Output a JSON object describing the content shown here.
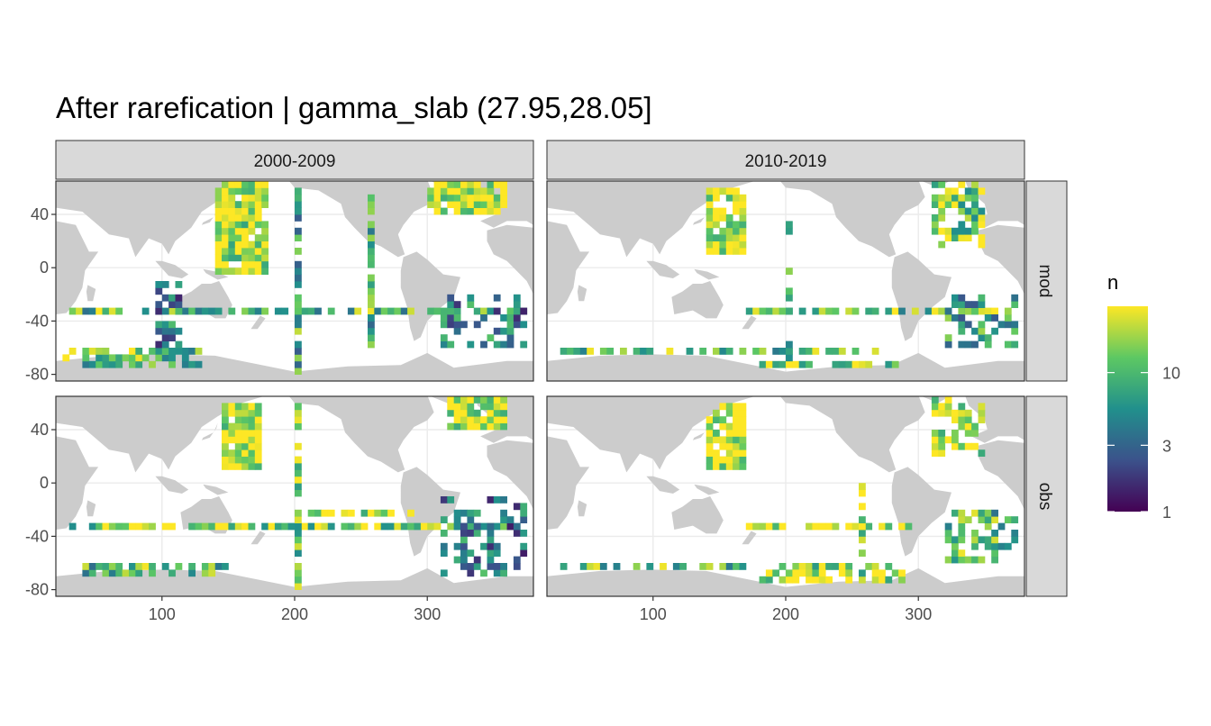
{
  "chart_data": {
    "type": "heatmap",
    "title": "After rarefication | gamma_slab (27.95,28.05]",
    "facet_columns": [
      "2000-2009",
      "2010-2019"
    ],
    "facet_rows": [
      "mod",
      "obs"
    ],
    "x_ticks": [
      "100",
      "200",
      "300"
    ],
    "x_tick_values": [
      100,
      200,
      300
    ],
    "y_ticks": [
      "40",
      "0",
      "-40",
      "-80"
    ],
    "y_tick_values": [
      40,
      0,
      -40,
      -80
    ],
    "xlim": [
      20,
      380
    ],
    "ylim": [
      -85,
      65
    ],
    "grid": true,
    "cell_size_deg": 5,
    "land_color": "#cccccc",
    "panel_background": "#ffffff",
    "strip_background": "#d9d9d9",
    "legend": {
      "title": "n",
      "position": "right",
      "scale": "log",
      "ticks": [
        "1",
        "3",
        "10"
      ],
      "tick_values": [
        1,
        3,
        10
      ],
      "max": 30,
      "colors": [
        "#440154",
        "#3b528b",
        "#21908c",
        "#5dc863",
        "#fde725"
      ]
    },
    "panels": [
      {
        "column": "2000-2009",
        "row": "mod",
        "tracks": [
          {
            "lon": [
              140,
              180
            ],
            "lat": [
              -5,
              65
            ],
            "n": 22,
            "density": 0.9
          },
          {
            "lon": [
              300,
              360
            ],
            "lat": [
              40,
              65
            ],
            "n": 25,
            "density": 0.9
          },
          {
            "lon": [
              30,
              375
            ],
            "lat": [
              -35,
              -30
            ],
            "n": 10,
            "density": 0.7
          },
          {
            "lon": [
              200,
              205
            ],
            "lat": [
              -80,
              60
            ],
            "n": 8,
            "density": 0.8
          },
          {
            "lon": [
              255,
              260
            ],
            "lat": [
              -60,
              60
            ],
            "n": 8,
            "density": 0.7
          },
          {
            "lon": [
              310,
              375
            ],
            "lat": [
              -60,
              -20
            ],
            "n": 4,
            "density": 0.45
          },
          {
            "lon": [
              25,
              130
            ],
            "lat": [
              -75,
              -60
            ],
            "n": 12,
            "density": 0.55
          },
          {
            "lon": [
              95,
              115
            ],
            "lat": [
              -70,
              -10
            ],
            "n": 4,
            "density": 0.5
          }
        ]
      },
      {
        "column": "2010-2019",
        "row": "mod",
        "tracks": [
          {
            "lon": [
              140,
              170
            ],
            "lat": [
              10,
              60
            ],
            "n": 24,
            "density": 0.85
          },
          {
            "lon": [
              165,
              360
            ],
            "lat": [
              -35,
              -30
            ],
            "n": 12,
            "density": 0.7
          },
          {
            "lon": [
              30,
              280
            ],
            "lat": [
              -65,
              -60
            ],
            "n": 10,
            "density": 0.6
          },
          {
            "lon": [
              180,
              290
            ],
            "lat": [
              -75,
              -70
            ],
            "n": 18,
            "density": 0.7
          },
          {
            "lon": [
              310,
              350
            ],
            "lat": [
              15,
              65
            ],
            "n": 15,
            "density": 0.6
          },
          {
            "lon": [
              320,
              375
            ],
            "lat": [
              -60,
              -20
            ],
            "n": 6,
            "density": 0.5
          },
          {
            "lon": [
              200,
              205
            ],
            "lat": [
              -70,
              40
            ],
            "n": 8,
            "density": 0.6
          }
        ]
      },
      {
        "column": "2000-2009",
        "row": "obs",
        "tracks": [
          {
            "lon": [
              145,
              175
            ],
            "lat": [
              10,
              60
            ],
            "n": 25,
            "density": 0.9
          },
          {
            "lon": [
              315,
              360
            ],
            "lat": [
              40,
              65
            ],
            "n": 25,
            "density": 0.9
          },
          {
            "lon": [
              30,
              375
            ],
            "lat": [
              -35,
              -30
            ],
            "n": 16,
            "density": 0.75
          },
          {
            "lon": [
              205,
              290
            ],
            "lat": [
              -25,
              -20
            ],
            "n": 20,
            "density": 0.8
          },
          {
            "lon": [
              200,
              205
            ],
            "lat": [
              -80,
              60
            ],
            "n": 12,
            "density": 0.8
          },
          {
            "lon": [
              30,
              150
            ],
            "lat": [
              -70,
              -60
            ],
            "n": 10,
            "density": 0.55
          },
          {
            "lon": [
              310,
              375
            ],
            "lat": [
              -70,
              -10
            ],
            "n": 4,
            "density": 0.4
          }
        ]
      },
      {
        "column": "2010-2019",
        "row": "obs",
        "tracks": [
          {
            "lon": [
              140,
              170
            ],
            "lat": [
              10,
              60
            ],
            "n": 25,
            "density": 0.85
          },
          {
            "lon": [
              165,
              300
            ],
            "lat": [
              -35,
              -30
            ],
            "n": 25,
            "density": 0.75
          },
          {
            "lon": [
              30,
              280
            ],
            "lat": [
              -65,
              -60
            ],
            "n": 10,
            "density": 0.6
          },
          {
            "lon": [
              180,
              290
            ],
            "lat": [
              -75,
              -65
            ],
            "n": 18,
            "density": 0.7
          },
          {
            "lon": [
              310,
              350
            ],
            "lat": [
              20,
              65
            ],
            "n": 20,
            "density": 0.6
          },
          {
            "lon": [
              320,
              375
            ],
            "lat": [
              -60,
              -20
            ],
            "n": 10,
            "density": 0.55
          },
          {
            "lon": [
              255,
              260
            ],
            "lat": [
              -75,
              0
            ],
            "n": 22,
            "density": 0.7
          }
        ]
      }
    ]
  }
}
